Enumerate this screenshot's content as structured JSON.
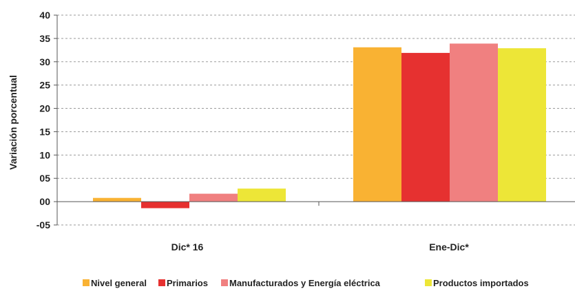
{
  "chart_data": {
    "type": "bar",
    "ylabel": "Variación porcentual",
    "ylim": [
      -5,
      40
    ],
    "ytick_step": 5,
    "ytick_labels": [
      "-05",
      "00",
      "05",
      "10",
      "15",
      "20",
      "25",
      "30",
      "35",
      "40"
    ],
    "grid": true,
    "legend_position": "bottom",
    "categories": [
      "Dic* 16",
      "Ene-Dic*"
    ],
    "series": [
      {
        "name": "Nivel general",
        "color": "#F9B233",
        "values": [
          0.8,
          33.1
        ]
      },
      {
        "name": "Primarios",
        "color": "#E63130",
        "values": [
          -1.4,
          31.9
        ]
      },
      {
        "name": "Manufacturados y Energía eléctrica",
        "color": "#F08080",
        "values": [
          1.7,
          33.9
        ]
      },
      {
        "name": "Productos importados",
        "color": "#EDE637",
        "values": [
          2.8,
          32.9
        ]
      }
    ]
  }
}
